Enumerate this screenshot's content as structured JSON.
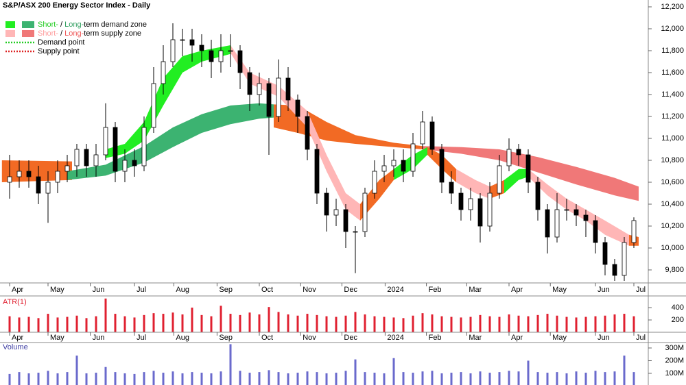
{
  "chart_data": {
    "type": "candlestick",
    "title": "S&P/ASX 200 Energy Sector Index - Daily",
    "x": [
      0,
      1,
      2,
      3,
      4,
      5,
      6,
      7,
      8,
      9,
      10,
      11,
      12,
      13,
      14,
      15,
      16,
      17,
      18,
      19,
      20,
      21,
      22,
      23,
      24,
      25,
      26,
      27,
      28,
      29,
      30,
      31,
      32,
      33,
      34,
      35,
      36,
      37,
      38,
      39,
      40,
      41,
      42,
      43,
      44,
      45,
      46,
      47,
      48,
      49,
      50,
      51,
      52,
      53,
      54,
      55,
      56,
      57,
      58,
      59,
      60,
      61,
      62,
      63,
      64,
      65
    ],
    "xlim": [
      -1,
      66.5
    ],
    "xticks": [
      {
        "value": 0,
        "label": "Apr"
      },
      {
        "value": 4,
        "label": "May"
      },
      {
        "value": 8.4,
        "label": "Jun"
      },
      {
        "value": 13,
        "label": "Jul"
      },
      {
        "value": 17.1,
        "label": "Aug"
      },
      {
        "value": 21.6,
        "label": "Sep"
      },
      {
        "value": 26,
        "label": "Oct"
      },
      {
        "value": 30.3,
        "label": "Nov"
      },
      {
        "value": 34.6,
        "label": "Dec"
      },
      {
        "value": 39.1,
        "label": "2024"
      },
      {
        "value": 43.4,
        "label": "Feb"
      },
      {
        "value": 47.6,
        "label": "Mar"
      },
      {
        "value": 52,
        "label": "Apr"
      },
      {
        "value": 56.3,
        "label": "May"
      },
      {
        "value": 61,
        "label": "Jun"
      },
      {
        "value": 65,
        "label": "Jul"
      }
    ],
    "open": [
      10600,
      10650,
      10700,
      10650,
      10500,
      10600,
      10700,
      10750,
      10900,
      10750,
      10850,
      11100,
      10700,
      10800,
      10750,
      11100,
      11500,
      11700,
      11900,
      11900,
      11850,
      11800,
      11700,
      11800,
      11800,
      11600,
      11400,
      11500,
      11200,
      11550,
      11350,
      11200,
      10900,
      10500,
      10300,
      10350,
      10150,
      10150,
      10500,
      10700,
      10750,
      10800,
      10700,
      10950,
      11150,
      10900,
      10600,
      10500,
      10350,
      10450,
      10200,
      10500,
      10750,
      10900,
      10850,
      10600,
      10350,
      10100,
      10350,
      10350,
      10300,
      10250,
      10050,
      9850,
      9750,
      10050
    ],
    "high": [
      10850,
      10800,
      10800,
      10750,
      10700,
      10800,
      10850,
      10950,
      10950,
      10950,
      11320,
      11150,
      10900,
      10900,
      11200,
      11650,
      11850,
      12050,
      12000,
      12000,
      11950,
      11900,
      11950,
      11950,
      11850,
      11650,
      11600,
      11550,
      11720,
      11650,
      11400,
      11250,
      10950,
      10550,
      10450,
      10400,
      10200,
      10550,
      10800,
      10850,
      10900,
      10900,
      11050,
      11250,
      11200,
      10950,
      10700,
      10550,
      10550,
      10500,
      10600,
      10850,
      11000,
      10950,
      10900,
      10650,
      10400,
      10500,
      10450,
      10400,
      10350,
      10300,
      10100,
      9900,
      10100,
      10280
    ],
    "low": [
      10450,
      10550,
      10550,
      10400,
      10230,
      10500,
      10600,
      10650,
      10650,
      10650,
      10800,
      10600,
      10600,
      10650,
      10700,
      11050,
      11400,
      11650,
      11750,
      11700,
      11650,
      11550,
      11600,
      11650,
      11450,
      11250,
      11300,
      10850,
      11150,
      11250,
      11050,
      10800,
      10400,
      10150,
      10200,
      10000,
      9770,
      10100,
      10450,
      10600,
      10650,
      10600,
      10650,
      10900,
      10850,
      10500,
      10400,
      10250,
      10250,
      10050,
      10150,
      10450,
      10700,
      10750,
      10500,
      10250,
      9950,
      10050,
      10250,
      10200,
      10100,
      9950,
      9750,
      9700,
      9700,
      10000
    ],
    "close": [
      10650,
      10700,
      10650,
      10500,
      10600,
      10700,
      10750,
      10900,
      10750,
      10850,
      11100,
      10700,
      10800,
      10750,
      11100,
      11500,
      11700,
      11900,
      11900,
      11850,
      11800,
      11700,
      11800,
      11800,
      11600,
      11400,
      11500,
      11200,
      11550,
      11350,
      11200,
      10900,
      10500,
      10300,
      10350,
      10150,
      10150,
      10500,
      10700,
      10750,
      10800,
      10700,
      10950,
      11150,
      10900,
      10600,
      10500,
      10350,
      10450,
      10200,
      10500,
      10750,
      10900,
      10850,
      10600,
      10350,
      10100,
      10350,
      10350,
      10300,
      10250,
      10050,
      9850,
      9750,
      10050,
      10250
    ],
    "ylim": [
      9687.5,
      12262.5
    ],
    "yticks": [
      {
        "value": 9800,
        "label": "9,800"
      },
      {
        "value": 10000,
        "label": "10,000"
      },
      {
        "value": 10200,
        "label": "10,200"
      },
      {
        "value": 10400,
        "label": "10,400"
      },
      {
        "value": 10600,
        "label": "10,600"
      },
      {
        "value": 10800,
        "label": "10,800"
      },
      {
        "value": 11000,
        "label": "11,000"
      },
      {
        "value": 11200,
        "label": "11,200"
      },
      {
        "value": 11400,
        "label": "11,400"
      },
      {
        "value": 11600,
        "label": "11,600"
      },
      {
        "value": 11800,
        "label": "11,800"
      },
      {
        "value": 12000,
        "label": "12,000"
      },
      {
        "value": 12200,
        "label": "12,200"
      }
    ],
    "up_color": "#ffffff",
    "down_color": "#000000",
    "zones": [
      {
        "color": "#f26a24",
        "x": [
          -0.8,
          6.5
        ],
        "upper": [
          10800,
          10790
        ],
        "lower": [
          10600,
          10620
        ]
      },
      {
        "color": "#3cb371",
        "x": [
          6,
          10,
          14,
          17,
          20,
          23,
          26,
          27.5
        ],
        "upper": [
          10700,
          10760,
          10930,
          11100,
          11220,
          11300,
          11320,
          11310
        ],
        "lower": [
          10620,
          10660,
          10780,
          10920,
          11050,
          11130,
          11180,
          11190
        ]
      },
      {
        "color": "#f26a24",
        "x": [
          27.5,
          30,
          33,
          36,
          40,
          43
        ],
        "upper": [
          11310,
          11300,
          11150,
          11030,
          10960,
          10930
        ],
        "lower": [
          11100,
          11050,
          10980,
          10950,
          10920,
          10900
        ]
      },
      {
        "color": "#f07878",
        "x": [
          43,
          47,
          51,
          55,
          59,
          63,
          65.5
        ],
        "upper": [
          10930,
          10920,
          10900,
          10830,
          10740,
          10640,
          10560
        ],
        "lower": [
          10900,
          10860,
          10800,
          10690,
          10580,
          10480,
          10430
        ]
      },
      {
        "color": "#22ee22",
        "x": [
          10,
          12,
          14,
          16,
          18,
          20,
          23
        ],
        "upper": [
          10900,
          10950,
          11150,
          11550,
          11750,
          11800,
          11850
        ],
        "lower": [
          10820,
          10860,
          10980,
          11300,
          11600,
          11700,
          11770
        ]
      },
      {
        "color": "#ffb6b6",
        "x": [
          23,
          25,
          28,
          31,
          33,
          35,
          36.5
        ],
        "upper": [
          11850,
          11600,
          11480,
          11250,
          10850,
          10500,
          10400
        ],
        "lower": [
          11780,
          11500,
          11380,
          11100,
          10700,
          10350,
          10250
        ]
      },
      {
        "color": "#f26a24",
        "x": [
          36.5,
          38.5,
          40
        ],
        "upper": [
          10400,
          10620,
          10720
        ],
        "lower": [
          10250,
          10450,
          10620
        ]
      },
      {
        "color": "#22ee22",
        "x": [
          40,
          42,
          43.5
        ],
        "upper": [
          10720,
          10850,
          10920
        ],
        "lower": [
          10620,
          10720,
          10850
        ]
      },
      {
        "color": "#f26a24",
        "x": [
          43.5,
          45,
          46.5
        ],
        "upper": [
          10920,
          10850,
          10720
        ],
        "lower": [
          10850,
          10720,
          10600
        ]
      },
      {
        "color": "#ffb6b6",
        "x": [
          46.5,
          48.5,
          50
        ],
        "upper": [
          10720,
          10620,
          10560
        ],
        "lower": [
          10600,
          10500,
          10450
        ]
      },
      {
        "color": "#f26a24",
        "x": [
          50,
          51.5
        ],
        "upper": [
          10560,
          10620
        ],
        "lower": [
          10450,
          10500
        ]
      },
      {
        "color": "#22ee22",
        "x": [
          51.5,
          53,
          54
        ],
        "upper": [
          10620,
          10720,
          10720
        ],
        "lower": [
          10500,
          10620,
          10650
        ]
      },
      {
        "color": "#ffb6b6",
        "x": [
          54,
          56,
          58,
          60,
          62,
          64.5
        ],
        "upper": [
          10720,
          10580,
          10450,
          10350,
          10250,
          10120
        ],
        "lower": [
          10650,
          10480,
          10350,
          10250,
          10120,
          10020
        ]
      },
      {
        "color": "#f26a24",
        "x": [
          64.5,
          65.5
        ],
        "upper": [
          10120,
          10100
        ],
        "lower": [
          10020,
          10020
        ]
      }
    ],
    "legend": [
      {
        "swatches": [
          "#22ee22",
          "#3cb371"
        ],
        "parts": [
          "Short-",
          " / ",
          "Long-",
          "term demand zone"
        ],
        "part_colors": [
          "#22cc22",
          "#000000",
          "#2e9e5e",
          "#000000"
        ]
      },
      {
        "swatches": [
          "#ffb6b6",
          "#f07878"
        ],
        "parts": [
          "Short-",
          " / ",
          "Long-",
          "term supply zone"
        ],
        "part_colors": [
          "#ff9c9c",
          "#000000",
          "#ee5555",
          "#000000"
        ]
      },
      {
        "line": "#22cc22",
        "parts": [
          "Demand point"
        ],
        "part_colors": [
          "#000000"
        ]
      },
      {
        "line": "#dd2222",
        "parts": [
          "Supply point"
        ],
        "part_colors": [
          "#000000"
        ]
      }
    ],
    "atr": {
      "label": "ATR(1)",
      "color": "#e02030",
      "ylim": [
        0,
        590
      ],
      "yticks": [
        200,
        400
      ],
      "values": [
        260,
        240,
        250,
        230,
        300,
        240,
        250,
        270,
        230,
        260,
        548,
        300,
        260,
        240,
        280,
        310,
        300,
        320,
        290,
        400,
        280,
        260,
        430,
        300,
        280,
        320,
        290,
        410,
        330,
        290,
        270,
        300,
        280,
        260,
        250,
        270,
        330,
        290,
        260,
        250,
        240,
        230,
        270,
        310,
        290,
        260,
        250,
        240,
        250,
        280,
        260,
        250,
        290,
        270,
        260,
        280,
        300,
        270,
        250,
        240,
        250,
        260,
        270,
        290,
        300,
        260
      ]
    },
    "volume": {
      "label": "Volume",
      "color": "#6a6acc",
      "ylim": [
        8,
        343
      ],
      "yticks": [
        {
          "value": 100,
          "label": "100M"
        },
        {
          "value": 200,
          "label": "200M"
        },
        {
          "value": 300,
          "label": "300M"
        }
      ],
      "values": [
        95,
        110,
        100,
        105,
        120,
        100,
        110,
        240,
        100,
        105,
        150,
        110,
        100,
        95,
        110,
        120,
        105,
        115,
        100,
        110,
        105,
        100,
        115,
        330,
        120,
        105,
        110,
        125,
        110,
        100,
        105,
        115,
        110,
        100,
        105,
        120,
        210,
        110,
        105,
        100,
        220,
        110,
        105,
        115,
        120,
        100,
        105,
        110,
        100,
        115,
        105,
        110,
        120,
        115,
        200,
        110,
        105,
        110,
        100,
        115,
        105,
        120,
        110,
        115,
        240,
        110
      ]
    }
  }
}
